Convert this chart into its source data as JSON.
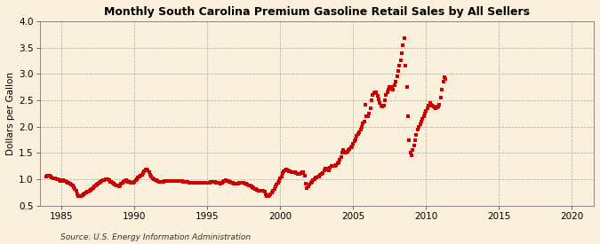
{
  "title": "Monthly South Carolina Premium Gasoline Retail Sales by All Sellers",
  "ylabel": "Dollars per Gallon",
  "source": "Source: U.S. Energy Information Administration",
  "background_color": "#faf0dc",
  "line_color": "#cc0000",
  "marker": "s",
  "markersize": 2.2,
  "linewidth": 0.0,
  "xlim": [
    1983.5,
    2021.5
  ],
  "ylim": [
    0.5,
    4.0
  ],
  "xticks": [
    1985,
    1990,
    1995,
    2000,
    2005,
    2010,
    2015,
    2020
  ],
  "yticks": [
    0.5,
    1.0,
    1.5,
    2.0,
    2.5,
    3.0,
    3.5,
    4.0
  ],
  "data": [
    [
      1983.917,
      1.059
    ],
    [
      1984.0,
      1.065
    ],
    [
      1984.083,
      1.068
    ],
    [
      1984.167,
      1.062
    ],
    [
      1984.25,
      1.051
    ],
    [
      1984.333,
      1.038
    ],
    [
      1984.417,
      1.027
    ],
    [
      1984.5,
      1.016
    ],
    [
      1984.583,
      1.013
    ],
    [
      1984.667,
      1.005
    ],
    [
      1984.75,
      0.998
    ],
    [
      1984.833,
      0.986
    ],
    [
      1984.917,
      0.975
    ],
    [
      1985.0,
      0.985
    ],
    [
      1985.083,
      0.982
    ],
    [
      1985.167,
      0.975
    ],
    [
      1985.25,
      0.968
    ],
    [
      1985.333,
      0.955
    ],
    [
      1985.417,
      0.942
    ],
    [
      1985.5,
      0.935
    ],
    [
      1985.583,
      0.925
    ],
    [
      1985.667,
      0.905
    ],
    [
      1985.75,
      0.88
    ],
    [
      1985.833,
      0.85
    ],
    [
      1985.917,
      0.82
    ],
    [
      1986.0,
      0.78
    ],
    [
      1986.083,
      0.72
    ],
    [
      1986.167,
      0.68
    ],
    [
      1986.25,
      0.68
    ],
    [
      1986.333,
      0.69
    ],
    [
      1986.417,
      0.7
    ],
    [
      1986.5,
      0.72
    ],
    [
      1986.583,
      0.73
    ],
    [
      1986.667,
      0.75
    ],
    [
      1986.75,
      0.76
    ],
    [
      1986.833,
      0.77
    ],
    [
      1986.917,
      0.78
    ],
    [
      1987.0,
      0.8
    ],
    [
      1987.083,
      0.82
    ],
    [
      1987.167,
      0.84
    ],
    [
      1987.25,
      0.86
    ],
    [
      1987.333,
      0.88
    ],
    [
      1987.417,
      0.9
    ],
    [
      1987.5,
      0.92
    ],
    [
      1987.583,
      0.93
    ],
    [
      1987.667,
      0.95
    ],
    [
      1987.75,
      0.97
    ],
    [
      1987.833,
      0.98
    ],
    [
      1987.917,
      0.99
    ],
    [
      1988.0,
      1.0
    ],
    [
      1988.083,
      1.01
    ],
    [
      1988.167,
      1.0
    ],
    [
      1988.25,
      0.98
    ],
    [
      1988.333,
      0.96
    ],
    [
      1988.417,
      0.95
    ],
    [
      1988.5,
      0.93
    ],
    [
      1988.583,
      0.92
    ],
    [
      1988.667,
      0.9
    ],
    [
      1988.75,
      0.89
    ],
    [
      1988.833,
      0.88
    ],
    [
      1988.917,
      0.87
    ],
    [
      1989.0,
      0.89
    ],
    [
      1989.083,
      0.91
    ],
    [
      1989.167,
      0.93
    ],
    [
      1989.25,
      0.95
    ],
    [
      1989.333,
      0.97
    ],
    [
      1989.417,
      0.98
    ],
    [
      1989.5,
      0.97
    ],
    [
      1989.583,
      0.96
    ],
    [
      1989.667,
      0.95
    ],
    [
      1989.75,
      0.94
    ],
    [
      1989.833,
      0.93
    ],
    [
      1989.917,
      0.94
    ],
    [
      1990.0,
      0.96
    ],
    [
      1990.083,
      0.98
    ],
    [
      1990.167,
      1.0
    ],
    [
      1990.25,
      1.03
    ],
    [
      1990.333,
      1.05
    ],
    [
      1990.417,
      1.07
    ],
    [
      1990.5,
      1.09
    ],
    [
      1990.583,
      1.12
    ],
    [
      1990.667,
      1.15
    ],
    [
      1990.75,
      1.18
    ],
    [
      1990.833,
      1.19
    ],
    [
      1990.917,
      1.17
    ],
    [
      1991.0,
      1.13
    ],
    [
      1991.083,
      1.08
    ],
    [
      1991.167,
      1.05
    ],
    [
      1991.25,
      1.02
    ],
    [
      1991.333,
      1.0
    ],
    [
      1991.417,
      0.99
    ],
    [
      1991.5,
      0.98
    ],
    [
      1991.583,
      0.97
    ],
    [
      1991.667,
      0.96
    ],
    [
      1991.75,
      0.96
    ],
    [
      1991.833,
      0.95
    ],
    [
      1991.917,
      0.95
    ],
    [
      1992.0,
      0.96
    ],
    [
      1992.083,
      0.97
    ],
    [
      1992.167,
      0.97
    ],
    [
      1992.25,
      0.97
    ],
    [
      1992.333,
      0.97
    ],
    [
      1992.417,
      0.97
    ],
    [
      1992.5,
      0.97
    ],
    [
      1992.583,
      0.97
    ],
    [
      1992.667,
      0.97
    ],
    [
      1992.75,
      0.97
    ],
    [
      1992.833,
      0.97
    ],
    [
      1992.917,
      0.97
    ],
    [
      1993.0,
      0.97
    ],
    [
      1993.083,
      0.97
    ],
    [
      1993.167,
      0.97
    ],
    [
      1993.25,
      0.97
    ],
    [
      1993.333,
      0.96
    ],
    [
      1993.417,
      0.95
    ],
    [
      1993.5,
      0.95
    ],
    [
      1993.583,
      0.95
    ],
    [
      1993.667,
      0.95
    ],
    [
      1993.75,
      0.94
    ],
    [
      1993.833,
      0.94
    ],
    [
      1993.917,
      0.94
    ],
    [
      1994.0,
      0.94
    ],
    [
      1994.083,
      0.94
    ],
    [
      1994.167,
      0.94
    ],
    [
      1994.25,
      0.94
    ],
    [
      1994.333,
      0.94
    ],
    [
      1994.417,
      0.94
    ],
    [
      1994.5,
      0.94
    ],
    [
      1994.583,
      0.94
    ],
    [
      1994.667,
      0.94
    ],
    [
      1994.75,
      0.93
    ],
    [
      1994.833,
      0.93
    ],
    [
      1994.917,
      0.93
    ],
    [
      1995.0,
      0.93
    ],
    [
      1995.083,
      0.93
    ],
    [
      1995.167,
      0.94
    ],
    [
      1995.25,
      0.95
    ],
    [
      1995.333,
      0.95
    ],
    [
      1995.417,
      0.95
    ],
    [
      1995.5,
      0.95
    ],
    [
      1995.583,
      0.94
    ],
    [
      1995.667,
      0.94
    ],
    [
      1995.75,
      0.93
    ],
    [
      1995.833,
      0.93
    ],
    [
      1995.917,
      0.92
    ],
    [
      1996.0,
      0.93
    ],
    [
      1996.083,
      0.95
    ],
    [
      1996.167,
      0.97
    ],
    [
      1996.25,
      0.98
    ],
    [
      1996.333,
      0.97
    ],
    [
      1996.417,
      0.97
    ],
    [
      1996.5,
      0.96
    ],
    [
      1996.583,
      0.95
    ],
    [
      1996.667,
      0.94
    ],
    [
      1996.75,
      0.93
    ],
    [
      1996.833,
      0.92
    ],
    [
      1996.917,
      0.92
    ],
    [
      1997.0,
      0.92
    ],
    [
      1997.083,
      0.92
    ],
    [
      1997.167,
      0.93
    ],
    [
      1997.25,
      0.93
    ],
    [
      1997.333,
      0.93
    ],
    [
      1997.417,
      0.93
    ],
    [
      1997.5,
      0.93
    ],
    [
      1997.583,
      0.92
    ],
    [
      1997.667,
      0.91
    ],
    [
      1997.75,
      0.9
    ],
    [
      1997.833,
      0.89
    ],
    [
      1997.917,
      0.88
    ],
    [
      1998.0,
      0.87
    ],
    [
      1998.083,
      0.85
    ],
    [
      1998.167,
      0.83
    ],
    [
      1998.25,
      0.82
    ],
    [
      1998.333,
      0.81
    ],
    [
      1998.417,
      0.8
    ],
    [
      1998.5,
      0.79
    ],
    [
      1998.583,
      0.79
    ],
    [
      1998.667,
      0.79
    ],
    [
      1998.75,
      0.79
    ],
    [
      1998.833,
      0.78
    ],
    [
      1998.917,
      0.77
    ],
    [
      1999.0,
      0.72
    ],
    [
      1999.083,
      0.68
    ],
    [
      1999.167,
      0.68
    ],
    [
      1999.25,
      0.7
    ],
    [
      1999.333,
      0.72
    ],
    [
      1999.417,
      0.75
    ],
    [
      1999.5,
      0.78
    ],
    [
      1999.583,
      0.82
    ],
    [
      1999.667,
      0.87
    ],
    [
      1999.75,
      0.9
    ],
    [
      1999.833,
      0.93
    ],
    [
      1999.917,
      0.97
    ],
    [
      2000.0,
      1.02
    ],
    [
      2000.083,
      1.06
    ],
    [
      2000.167,
      1.12
    ],
    [
      2000.25,
      1.15
    ],
    [
      2000.333,
      1.17
    ],
    [
      2000.417,
      1.18
    ],
    [
      2000.5,
      1.17
    ],
    [
      2000.583,
      1.16
    ],
    [
      2000.667,
      1.15
    ],
    [
      2000.75,
      1.14
    ],
    [
      2000.833,
      1.14
    ],
    [
      2000.917,
      1.14
    ],
    [
      2001.0,
      1.13
    ],
    [
      2001.083,
      1.12
    ],
    [
      2001.167,
      1.11
    ],
    [
      2001.25,
      1.11
    ],
    [
      2001.333,
      1.11
    ],
    [
      2001.417,
      1.12
    ],
    [
      2001.5,
      1.13
    ],
    [
      2001.583,
      1.13
    ],
    [
      2001.667,
      1.07
    ],
    [
      2001.75,
      0.92
    ],
    [
      2001.833,
      0.83
    ],
    [
      2001.917,
      0.86
    ],
    [
      2002.0,
      0.9
    ],
    [
      2002.083,
      0.93
    ],
    [
      2002.167,
      0.96
    ],
    [
      2002.25,
      0.99
    ],
    [
      2002.333,
      1.01
    ],
    [
      2002.417,
      1.03
    ],
    [
      2002.5,
      1.04
    ],
    [
      2002.583,
      1.05
    ],
    [
      2002.667,
      1.06
    ],
    [
      2002.75,
      1.08
    ],
    [
      2002.833,
      1.1
    ],
    [
      2002.917,
      1.12
    ],
    [
      2003.0,
      1.17
    ],
    [
      2003.083,
      1.21
    ],
    [
      2003.167,
      1.2
    ],
    [
      2003.25,
      1.18
    ],
    [
      2003.333,
      1.17
    ],
    [
      2003.417,
      1.22
    ],
    [
      2003.5,
      1.26
    ],
    [
      2003.583,
      1.25
    ],
    [
      2003.667,
      1.25
    ],
    [
      2003.75,
      1.26
    ],
    [
      2003.833,
      1.28
    ],
    [
      2003.917,
      1.3
    ],
    [
      2004.0,
      1.33
    ],
    [
      2004.083,
      1.37
    ],
    [
      2004.167,
      1.43
    ],
    [
      2004.25,
      1.5
    ],
    [
      2004.333,
      1.55
    ],
    [
      2004.417,
      1.52
    ],
    [
      2004.5,
      1.5
    ],
    [
      2004.583,
      1.52
    ],
    [
      2004.667,
      1.55
    ],
    [
      2004.75,
      1.58
    ],
    [
      2004.833,
      1.6
    ],
    [
      2004.917,
      1.63
    ],
    [
      2005.0,
      1.68
    ],
    [
      2005.083,
      1.72
    ],
    [
      2005.167,
      1.76
    ],
    [
      2005.25,
      1.82
    ],
    [
      2005.333,
      1.86
    ],
    [
      2005.417,
      1.9
    ],
    [
      2005.5,
      1.94
    ],
    [
      2005.583,
      2.0
    ],
    [
      2005.667,
      2.06
    ],
    [
      2005.75,
      2.1
    ],
    [
      2005.833,
      2.42
    ],
    [
      2005.917,
      2.2
    ],
    [
      2006.0,
      2.2
    ],
    [
      2006.083,
      2.25
    ],
    [
      2006.167,
      2.35
    ],
    [
      2006.25,
      2.5
    ],
    [
      2006.333,
      2.6
    ],
    [
      2006.417,
      2.63
    ],
    [
      2006.5,
      2.65
    ],
    [
      2006.583,
      2.65
    ],
    [
      2006.667,
      2.58
    ],
    [
      2006.75,
      2.52
    ],
    [
      2006.833,
      2.45
    ],
    [
      2006.917,
      2.4
    ],
    [
      2007.0,
      2.38
    ],
    [
      2007.083,
      2.4
    ],
    [
      2007.167,
      2.5
    ],
    [
      2007.25,
      2.6
    ],
    [
      2007.333,
      2.65
    ],
    [
      2007.417,
      2.7
    ],
    [
      2007.5,
      2.75
    ],
    [
      2007.583,
      2.75
    ],
    [
      2007.667,
      2.72
    ],
    [
      2007.75,
      2.7
    ],
    [
      2007.833,
      2.78
    ],
    [
      2007.917,
      2.85
    ],
    [
      2008.0,
      2.95
    ],
    [
      2008.083,
      3.05
    ],
    [
      2008.167,
      3.15
    ],
    [
      2008.25,
      3.25
    ],
    [
      2008.333,
      3.4
    ],
    [
      2008.417,
      3.55
    ],
    [
      2008.5,
      3.68
    ],
    [
      2008.583,
      3.15
    ],
    [
      2008.667,
      2.75
    ],
    [
      2008.75,
      2.2
    ],
    [
      2008.833,
      1.75
    ],
    [
      2008.917,
      1.5
    ],
    [
      2009.0,
      1.45
    ],
    [
      2009.083,
      1.55
    ],
    [
      2009.167,
      1.65
    ],
    [
      2009.25,
      1.75
    ],
    [
      2009.333,
      1.85
    ],
    [
      2009.417,
      1.95
    ],
    [
      2009.5,
      2.0
    ],
    [
      2009.583,
      2.05
    ],
    [
      2009.667,
      2.1
    ],
    [
      2009.75,
      2.15
    ],
    [
      2009.833,
      2.2
    ],
    [
      2009.917,
      2.25
    ],
    [
      2010.0,
      2.3
    ],
    [
      2010.083,
      2.35
    ],
    [
      2010.167,
      2.4
    ],
    [
      2010.25,
      2.45
    ],
    [
      2010.333,
      2.42
    ],
    [
      2010.417,
      2.4
    ],
    [
      2010.5,
      2.38
    ],
    [
      2010.583,
      2.36
    ],
    [
      2010.667,
      2.35
    ],
    [
      2010.75,
      2.36
    ],
    [
      2010.833,
      2.38
    ],
    [
      2010.917,
      2.42
    ],
    [
      2011.0,
      2.55
    ],
    [
      2011.083,
      2.7
    ],
    [
      2011.167,
      2.85
    ],
    [
      2011.25,
      2.93
    ],
    [
      2011.333,
      2.9
    ]
  ]
}
